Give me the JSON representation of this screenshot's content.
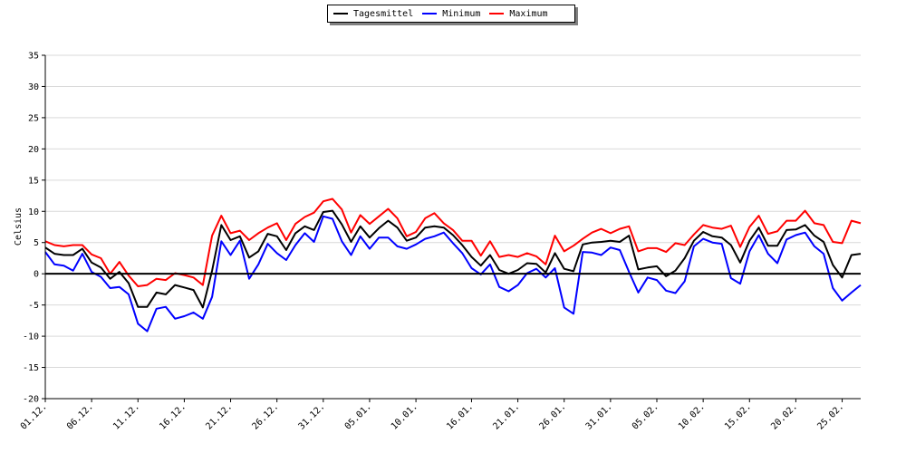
{
  "legend": [
    {
      "name": "Tagesmittel",
      "color": "#000000"
    },
    {
      "name": "Minimum",
      "color": "#0000ff"
    },
    {
      "name": "Maximum",
      "color": "#ff0000"
    }
  ],
  "chart_data": {
    "type": "line",
    "ylabel": "Celsius",
    "ylim": [
      -20,
      35
    ],
    "yticks": [
      35,
      30,
      25,
      20,
      15,
      10,
      5,
      0,
      -5,
      -10,
      -15,
      -20
    ],
    "xlim": [
      0,
      88
    ],
    "xtick_labels": [
      "01.12.",
      "06.12.",
      "11.12.",
      "16.12.",
      "21.12.",
      "26.12.",
      "31.12.",
      "05.01.",
      "10.01.",
      "16.01.",
      "21.01.",
      "26.01.",
      "31.01.",
      "05.02.",
      "10.02.",
      "15.02.",
      "20.02.",
      "25.02."
    ],
    "xtick_days": [
      0,
      5,
      10,
      15,
      20,
      25,
      30,
      35,
      40,
      46,
      51,
      56,
      61,
      66,
      71,
      76,
      81,
      86
    ],
    "grid": true,
    "legend_position": "top-center",
    "series": [
      {
        "name": "Minimum",
        "color": "#0000ff",
        "values": [
          3.5,
          1.5,
          1.3,
          0.5,
          3.2,
          0.3,
          -0.5,
          -2.3,
          -2.1,
          -3.3,
          -8.0,
          -9.2,
          -5.6,
          -5.3,
          -7.2,
          -6.8,
          -6.2,
          -7.2,
          -3.7,
          5.2,
          3.0,
          5.3,
          -0.8,
          1.5,
          4.8,
          3.3,
          2.2,
          4.6,
          6.5,
          5.1,
          9.2,
          8.8,
          5.2,
          3.0,
          6.0,
          4.0,
          5.8,
          5.8,
          4.4,
          4.0,
          4.7,
          5.6,
          6.0,
          6.6,
          4.9,
          3.3,
          0.9,
          -0.1,
          1.5,
          -2.1,
          -2.8,
          -1.8,
          0.1,
          0.8,
          -0.6,
          0.9,
          -5.4,
          -6.4,
          3.5,
          3.4,
          3.0,
          4.2,
          3.8,
          0.3,
          -3.0,
          -0.6,
          -1.0,
          -2.7,
          -3.1,
          -1.2,
          4.4,
          5.6,
          5.0,
          4.8,
          -0.7,
          -1.6,
          3.6,
          6.2,
          3.2,
          1.7,
          5.5,
          6.2,
          6.6,
          4.4,
          3.2,
          -2.3,
          -4.3,
          -3.0,
          -1.8
        ]
      },
      {
        "name": "Maximum",
        "color": "#ff0000",
        "values": [
          5.2,
          4.6,
          4.4,
          4.6,
          4.6,
          3.1,
          2.5,
          0.0,
          1.9,
          -0.3,
          -2.0,
          -1.8,
          -0.8,
          -1.0,
          0.1,
          -0.2,
          -0.6,
          -1.8,
          6.1,
          9.3,
          6.5,
          6.9,
          5.4,
          6.5,
          7.4,
          8.1,
          5.4,
          8.0,
          9.1,
          9.8,
          11.6,
          12.0,
          10.3,
          6.6,
          9.4,
          8.0,
          9.2,
          10.4,
          8.9,
          6.0,
          6.7,
          8.9,
          9.7,
          8.1,
          7.0,
          5.3,
          5.3,
          2.9,
          5.2,
          2.7,
          3.0,
          2.7,
          3.3,
          2.8,
          1.5,
          6.1,
          3.6,
          4.5,
          5.6,
          6.6,
          7.2,
          6.5,
          7.2,
          7.6,
          3.6,
          4.1,
          4.1,
          3.5,
          4.9,
          4.6,
          6.3,
          7.8,
          7.4,
          7.2,
          7.7,
          4.3,
          7.5,
          9.3,
          6.4,
          6.8,
          8.5,
          8.5,
          10.1,
          8.1,
          7.8,
          5.1,
          4.9,
          8.5,
          8.1
        ]
      },
      {
        "name": "Tagesmittel",
        "color": "#000000",
        "values": [
          4.2,
          3.2,
          3.0,
          3.0,
          4.0,
          1.8,
          1.0,
          -0.8,
          0.3,
          -1.5,
          -5.3,
          -5.3,
          -3.0,
          -3.3,
          -1.8,
          -2.2,
          -2.6,
          -5.4,
          0.5,
          7.8,
          5.4,
          6.0,
          2.6,
          3.6,
          6.4,
          6.0,
          3.8,
          6.5,
          7.6,
          7.0,
          9.9,
          10.1,
          7.9,
          5.1,
          7.6,
          5.8,
          7.3,
          8.5,
          7.4,
          5.3,
          5.8,
          7.4,
          7.6,
          7.4,
          6.2,
          4.6,
          2.7,
          1.3,
          3.0,
          0.6,
          0.0,
          0.6,
          1.7,
          1.6,
          0.2,
          3.3,
          0.8,
          0.4,
          4.7,
          5.0,
          5.1,
          5.3,
          5.1,
          6.1,
          0.7,
          1.0,
          1.2,
          -0.4,
          0.5,
          2.5,
          5.3,
          6.7,
          6.0,
          5.8,
          4.6,
          1.8,
          5.3,
          7.4,
          4.5,
          4.5,
          7.0,
          7.1,
          7.8,
          6.1,
          5.1,
          1.4,
          -0.6,
          3.0,
          3.2
        ]
      }
    ]
  }
}
